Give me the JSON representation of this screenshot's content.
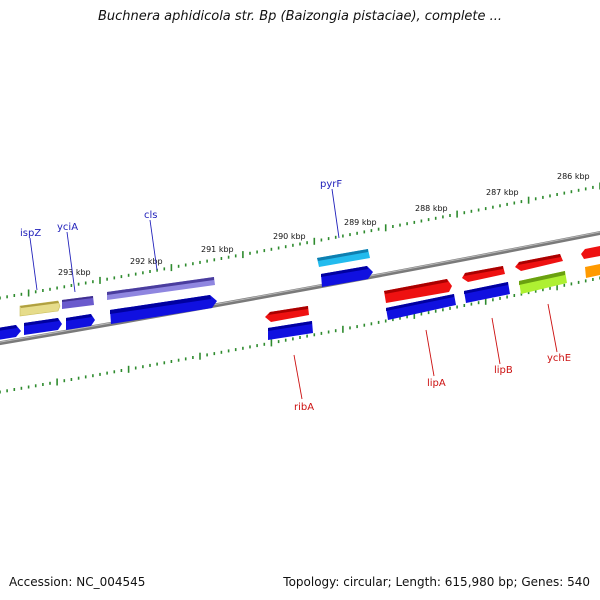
{
  "title": "Buchnera aphidicola str. Bp (Baizongia pistaciae), complete ...",
  "footer": {
    "accession": "Accession: NC_004545",
    "summary": "Topology: circular; Length: 615,980 bp; Genes: 540"
  },
  "ruler_ticks": [
    "293 kbp",
    "292 kbp",
    "291 kbp",
    "290 kbp",
    "289 kbp",
    "288 kbp",
    "287 kbp",
    "286 kbp"
  ],
  "gene_labels": {
    "forward": [
      "ispZ",
      "yciA",
      "cls",
      "pyrF"
    ],
    "reverse": [
      "ribA",
      "lipA",
      "lipB",
      "ychE"
    ]
  },
  "colors": {
    "forward_label": "#2222bb",
    "reverse_label": "#cc1111",
    "blue": "#1010e0",
    "red": "#ee1111",
    "purple": "#6a5acd",
    "lavender": "#8f86e0",
    "cyan": "#22bbee",
    "khaki": "#e6dc8a",
    "lime": "#aef032",
    "orange": "#ff9a00",
    "tick": "#2e8b2e",
    "backbone": "#7a7a7a"
  }
}
